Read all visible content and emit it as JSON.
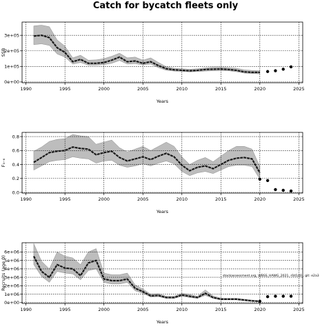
{
  "figure": {
    "title": "Catch for bycatch fleets only"
  },
  "chart_data": [
    {
      "type": "line",
      "panel": "top",
      "xlabel": "Years",
      "ylabel": "SSB",
      "xlim": [
        1989.5,
        2025.5
      ],
      "ylim": [
        -5000,
        385000
      ],
      "xticks": [
        1990,
        1995,
        2000,
        2005,
        2010,
        2015,
        2020,
        2025
      ],
      "yticks": [
        0,
        100000,
        200000,
        300000
      ],
      "ytick_labels": [
        "0e+00",
        "1e+05",
        "2e+05",
        "3e+05"
      ],
      "grid": true,
      "x": [
        1991,
        1992,
        1993,
        1994,
        1995,
        1996,
        1997,
        1998,
        1999,
        2000,
        2001,
        2002,
        2003,
        2004,
        2005,
        2006,
        2007,
        2008,
        2009,
        2010,
        2011,
        2012,
        2013,
        2014,
        2015,
        2016,
        2017,
        2018,
        2019,
        2020
      ],
      "series": [
        {
          "values": [
            295000,
            300000,
            285000,
            220000,
            190000,
            130000,
            145000,
            120000,
            120000,
            125000,
            140000,
            160000,
            130000,
            135000,
            120000,
            130000,
            105000,
            85000,
            78000,
            75000,
            72000,
            75000,
            80000,
            82000,
            83000,
            80000,
            75000,
            65000,
            62000,
            62000
          ],
          "lower": [
            240000,
            245000,
            235000,
            180000,
            160000,
            115000,
            125000,
            108000,
            108000,
            112000,
            120000,
            138000,
            115000,
            118000,
            110000,
            115000,
            92000,
            75000,
            70000,
            68000,
            65000,
            67000,
            70000,
            72000,
            73000,
            72000,
            66000,
            57000,
            54000,
            52000
          ],
          "upper": [
            360000,
            365000,
            355000,
            270000,
            230000,
            155000,
            172000,
            140000,
            142000,
            150000,
            165000,
            185000,
            155000,
            160000,
            140000,
            155000,
            125000,
            98000,
            88000,
            85000,
            82000,
            85000,
            90000,
            94000,
            95000,
            92000,
            88000,
            78000,
            74000,
            72000
          ]
        }
      ],
      "forecast": {
        "x": [
          2021,
          2022,
          2023,
          2024
        ],
        "values": [
          67000,
          72000,
          82000,
          97000
        ]
      }
    },
    {
      "type": "line",
      "panel": "middle",
      "xlabel": "Years",
      "ylabel": "F₃₋₆",
      "xlim": [
        1989.5,
        2025.5
      ],
      "ylim": [
        -0.01,
        0.86
      ],
      "xticks": [
        1990,
        1995,
        2000,
        2005,
        2010,
        2015,
        2020,
        2025
      ],
      "yticks": [
        0.0,
        0.2,
        0.4,
        0.6,
        0.8
      ],
      "ytick_labels": [
        "0.0",
        "0.2",
        "0.4",
        "0.6",
        "0.8"
      ],
      "grid": true,
      "x": [
        1991,
        1992,
        1993,
        1994,
        1995,
        1996,
        1997,
        1998,
        1999,
        2000,
        2001,
        2002,
        2003,
        2004,
        2005,
        2006,
        2007,
        2008,
        2009,
        2010,
        2011,
        2012,
        2013,
        2014,
        2015,
        2016,
        2017,
        2018,
        2019,
        2020
      ],
      "series": [
        {
          "values": [
            0.43,
            0.5,
            0.57,
            0.59,
            0.6,
            0.65,
            0.63,
            0.62,
            0.54,
            0.57,
            0.59,
            0.5,
            0.45,
            0.48,
            0.51,
            0.47,
            0.52,
            0.56,
            0.51,
            0.39,
            0.31,
            0.36,
            0.38,
            0.34,
            0.4,
            0.46,
            0.49,
            0.5,
            0.48,
            0.28
          ],
          "lower": [
            0.32,
            0.38,
            0.44,
            0.46,
            0.47,
            0.51,
            0.49,
            0.48,
            0.42,
            0.45,
            0.46,
            0.39,
            0.36,
            0.38,
            0.41,
            0.38,
            0.42,
            0.45,
            0.41,
            0.3,
            0.24,
            0.28,
            0.3,
            0.27,
            0.32,
            0.37,
            0.39,
            0.39,
            0.37,
            0.19
          ],
          "upper": [
            0.59,
            0.65,
            0.73,
            0.76,
            0.77,
            0.83,
            0.81,
            0.8,
            0.69,
            0.72,
            0.75,
            0.64,
            0.58,
            0.62,
            0.66,
            0.6,
            0.66,
            0.72,
            0.66,
            0.51,
            0.4,
            0.46,
            0.5,
            0.44,
            0.52,
            0.6,
            0.66,
            0.66,
            0.62,
            0.37
          ]
        }
      ],
      "forecast": {
        "x": [
          2020,
          2021,
          2022,
          2023,
          2024
        ],
        "values": [
          0.19,
          0.17,
          0.04,
          0.03,
          0.02
        ]
      }
    },
    {
      "type": "line",
      "panel": "bottom",
      "xlabel": "Years",
      "ylabel": "Recruits (age 0)",
      "xlim": [
        1989.5,
        2025.5
      ],
      "ylim": [
        -100000,
        7100000
      ],
      "xticks": [
        1990,
        1995,
        2000,
        2005,
        2010,
        2015,
        2020,
        2025
      ],
      "yticks": [
        0,
        1000000,
        2000000,
        3000000,
        4000000,
        5000000,
        6000000
      ],
      "ytick_labels": [
        "0e+00",
        "1e+06",
        "2e+06",
        "3e+06",
        "4e+06",
        "5e+06",
        "6e+06"
      ],
      "grid": true,
      "annotation": "stockassessment.org, WBSS_HAWG_2021, r04140 , git: e2a3",
      "x": [
        1991,
        1992,
        1993,
        1994,
        1995,
        1996,
        1997,
        1998,
        1999,
        2000,
        2001,
        2002,
        2003,
        2004,
        2005,
        2006,
        2007,
        2008,
        2009,
        2010,
        2011,
        2012,
        2013,
        2014,
        2015,
        2016,
        2017,
        2018,
        2019,
        2020
      ],
      "series": [
        {
          "values": [
            5500000,
            3700000,
            3000000,
            4500000,
            4100000,
            4000000,
            3200000,
            4700000,
            5000000,
            2800000,
            2600000,
            2600000,
            2800000,
            1700000,
            1300000,
            800000,
            850000,
            600000,
            600000,
            900000,
            750000,
            600000,
            1100000,
            600000,
            400000,
            400000,
            400000,
            300000,
            200000,
            150000
          ],
          "lower": [
            4500000,
            3100000,
            2400000,
            3700000,
            3500000,
            3400000,
            2700000,
            3800000,
            4000000,
            2400000,
            2200000,
            2200000,
            2400000,
            1400000,
            1100000,
            650000,
            700000,
            500000,
            500000,
            750000,
            600000,
            500000,
            850000,
            500000,
            320000,
            320000,
            320000,
            220000,
            140000,
            100000
          ],
          "upper": [
            7000000,
            4900000,
            4000000,
            6000000,
            5500000,
            5300000,
            4500000,
            6000000,
            6400000,
            3500000,
            3300000,
            3300000,
            3500000,
            2100000,
            1600000,
            1000000,
            1050000,
            750000,
            750000,
            1100000,
            950000,
            750000,
            1500000,
            800000,
            520000,
            500000,
            510000,
            400000,
            300000,
            220000
          ]
        }
      ],
      "forecast": {
        "x": [
          2020,
          2021,
          2022,
          2023,
          2024
        ],
        "values": [
          150000,
          700000,
          750000,
          750000,
          750000
        ]
      }
    }
  ]
}
